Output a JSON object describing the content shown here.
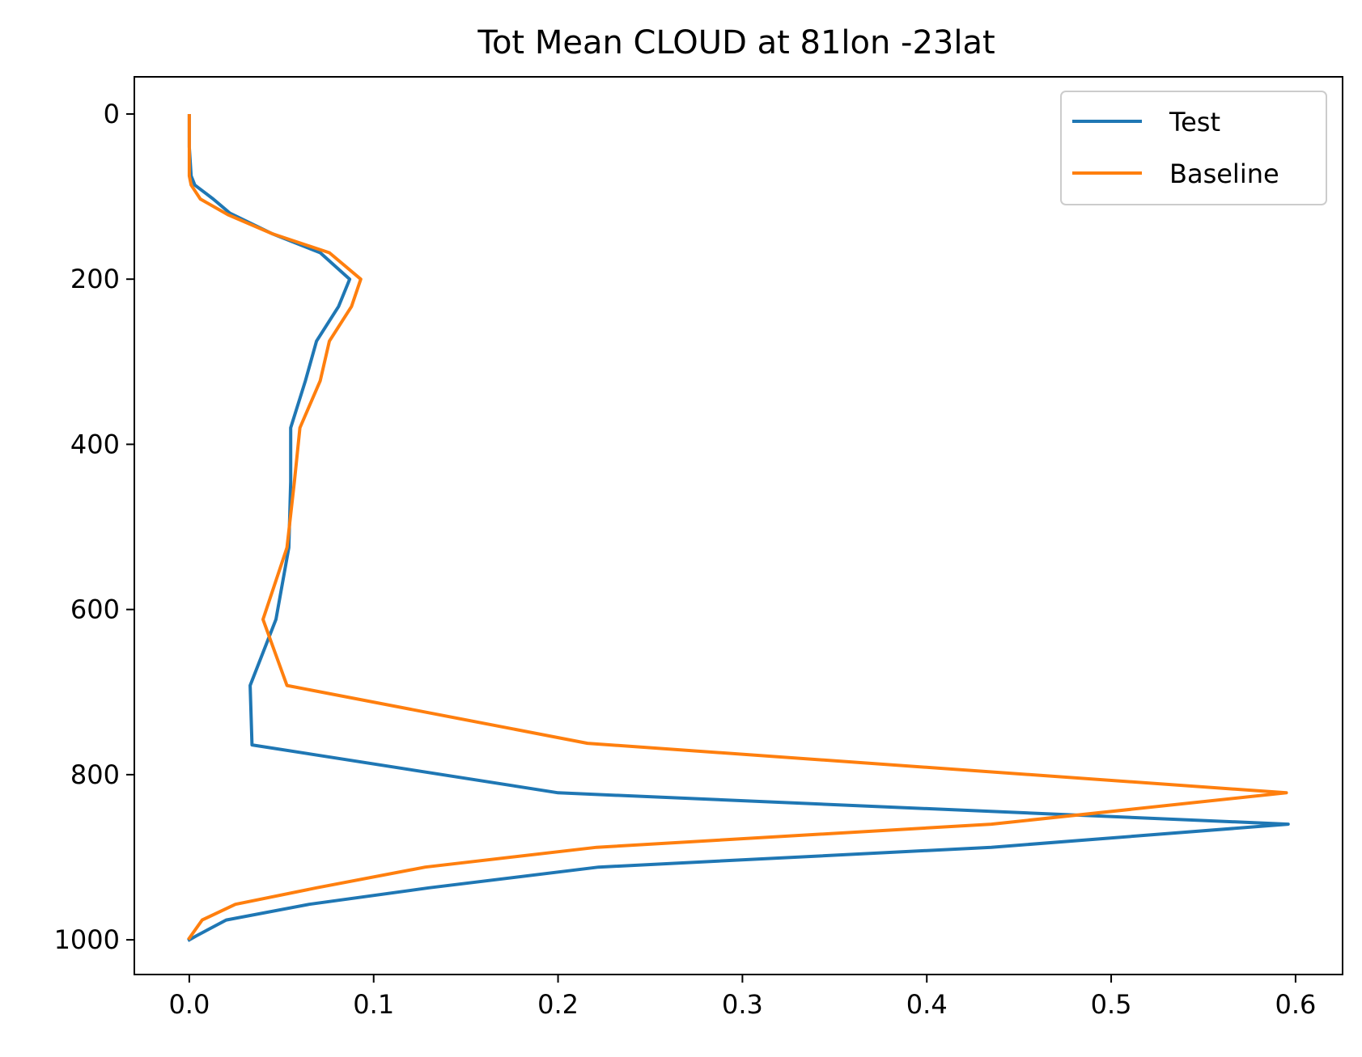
{
  "chart_data": {
    "type": "line",
    "title": "Tot Mean CLOUD at 81lon -23lat",
    "xlabel": "",
    "ylabel": "",
    "xlim": [
      -0.0298,
      0.6255
    ],
    "ylim": [
      1042,
      -45
    ],
    "y_inverted": true,
    "grid": false,
    "legend_position": "top-right",
    "x_ticks": [
      "0.0",
      "0.1",
      "0.2",
      "0.3",
      "0.4",
      "0.5",
      "0.6"
    ],
    "x_tick_values": [
      0.0,
      0.1,
      0.2,
      0.3,
      0.4,
      0.5,
      0.6
    ],
    "y_ticks": [
      "0",
      "200",
      "400",
      "600",
      "800",
      "1000"
    ],
    "y_tick_values": [
      0,
      200,
      400,
      600,
      800,
      1000
    ],
    "series": [
      {
        "name": "Test",
        "color": "#1f77b4",
        "x": [
          0.0,
          0.0,
          0.0,
          0.001,
          0.003,
          0.013,
          0.022,
          0.045,
          0.071,
          0.087,
          0.081,
          0.069,
          0.063,
          0.055,
          0.055,
          0.054,
          0.047,
          0.033,
          0.034,
          0.2,
          0.596,
          0.435,
          0.222,
          0.13,
          0.065,
          0.02,
          0.004,
          0.0
        ],
        "y": [
          2,
          20,
          40,
          75,
          86,
          103,
          120,
          145,
          168,
          200,
          233,
          275,
          323,
          380,
          445,
          525,
          612,
          692,
          764,
          822,
          860,
          888,
          912,
          937,
          957,
          976,
          995,
          1000
        ]
      },
      {
        "name": "Baseline",
        "color": "#ff7f0e",
        "x": [
          0.0,
          0.0,
          0.0,
          0.0,
          0.001,
          0.006,
          0.021,
          0.045,
          0.076,
          0.093,
          0.088,
          0.076,
          0.071,
          0.06,
          0.057,
          0.053,
          0.04,
          0.053,
          0.216,
          0.595,
          0.435,
          0.221,
          0.128,
          0.069,
          0.025,
          0.007,
          0.0
        ],
        "y": [
          2,
          20,
          40,
          75,
          86,
          103,
          122,
          145,
          168,
          200,
          233,
          275,
          323,
          380,
          445,
          525,
          612,
          692,
          762,
          822,
          860,
          888,
          912,
          937,
          957,
          976,
          998
        ]
      }
    ]
  }
}
